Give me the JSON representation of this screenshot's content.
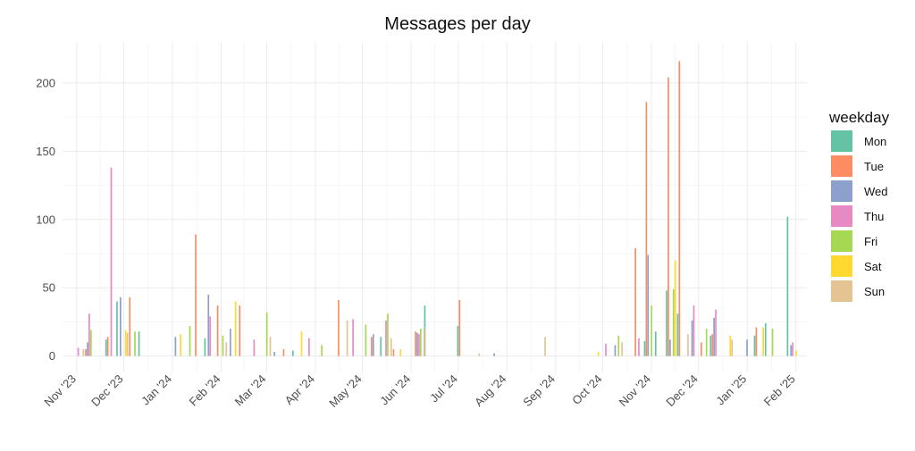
{
  "chart_data": {
    "type": "bar",
    "title": "Messages per day",
    "xlabel": "",
    "ylabel": "",
    "xlim": [
      "2023-10-23",
      "2025-02-08"
    ],
    "ylim": [
      -12,
      230
    ],
    "y_ticks": [
      0,
      50,
      100,
      150,
      200
    ],
    "x_ticks": [
      {
        "date": "2023-11-01",
        "label": "Nov '23"
      },
      {
        "date": "2023-12-01",
        "label": "Dec '23"
      },
      {
        "date": "2024-01-01",
        "label": "Jan '24"
      },
      {
        "date": "2024-02-01",
        "label": "Feb '24"
      },
      {
        "date": "2024-03-01",
        "label": "Mar '24"
      },
      {
        "date": "2024-04-01",
        "label": "Apr '24"
      },
      {
        "date": "2024-05-01",
        "label": "May '24"
      },
      {
        "date": "2024-06-01",
        "label": "Jun '24"
      },
      {
        "date": "2024-07-01",
        "label": "Jul '24"
      },
      {
        "date": "2024-08-01",
        "label": "Aug '24"
      },
      {
        "date": "2024-09-01",
        "label": "Sep '24"
      },
      {
        "date": "2024-10-01",
        "label": "Oct '24"
      },
      {
        "date": "2024-11-01",
        "label": "Nov '24"
      },
      {
        "date": "2024-12-01",
        "label": "Dec '24"
      },
      {
        "date": "2025-01-01",
        "label": "Jan '25"
      },
      {
        "date": "2025-02-01",
        "label": "Feb '25"
      }
    ],
    "grid": true,
    "legend": {
      "title": "weekday",
      "position": "right"
    },
    "series": [
      {
        "name": "Mon",
        "color": "#66C2A5",
        "points": [
          [
            "2023-11-20",
            12
          ],
          [
            "2023-11-27",
            40
          ],
          [
            "2023-12-11",
            18
          ],
          [
            "2024-01-22",
            13
          ],
          [
            "2024-03-18",
            4
          ],
          [
            "2024-05-13",
            14
          ],
          [
            "2024-06-10",
            37
          ],
          [
            "2024-07-01",
            22
          ],
          [
            "2024-10-28",
            11
          ],
          [
            "2024-11-04",
            18
          ],
          [
            "2024-11-11",
            48
          ],
          [
            "2024-11-18",
            31
          ],
          [
            "2024-12-09",
            15
          ],
          [
            "2025-01-06",
            15
          ],
          [
            "2025-01-13",
            24
          ],
          [
            "2025-01-27",
            102
          ]
        ]
      },
      {
        "name": "Tue",
        "color": "#FC8D62",
        "points": [
          [
            "2023-11-07",
            5
          ],
          [
            "2023-11-21",
            14
          ],
          [
            "2023-12-05",
            43
          ],
          [
            "2024-01-16",
            89
          ],
          [
            "2024-01-30",
            37
          ],
          [
            "2024-02-13",
            37
          ],
          [
            "2024-03-12",
            5
          ],
          [
            "2024-04-16",
            41
          ],
          [
            "2024-05-07",
            14
          ],
          [
            "2024-05-21",
            5
          ],
          [
            "2024-06-04",
            18
          ],
          [
            "2024-07-02",
            41
          ],
          [
            "2024-10-22",
            79
          ],
          [
            "2024-10-29",
            186
          ],
          [
            "2024-11-12",
            204
          ],
          [
            "2024-11-19",
            216
          ],
          [
            "2024-12-03",
            10
          ],
          [
            "2024-12-10",
            16
          ],
          [
            "2025-01-07",
            21
          ]
        ]
      },
      {
        "name": "Wed",
        "color": "#8DA0CB",
        "points": [
          [
            "2023-11-08",
            10
          ],
          [
            "2023-11-29",
            43
          ],
          [
            "2024-01-03",
            14
          ],
          [
            "2024-01-24",
            45
          ],
          [
            "2024-02-07",
            20
          ],
          [
            "2024-03-06",
            3
          ],
          [
            "2024-05-08",
            16
          ],
          [
            "2024-06-05",
            17
          ],
          [
            "2024-07-24",
            2
          ],
          [
            "2024-10-09",
            8
          ],
          [
            "2024-10-30",
            74
          ],
          [
            "2024-11-13",
            12
          ],
          [
            "2024-11-27",
            26
          ],
          [
            "2024-12-11",
            28
          ],
          [
            "2025-01-01",
            12
          ],
          [
            "2025-01-29",
            8
          ]
        ]
      },
      {
        "name": "Thu",
        "color": "#E78AC3",
        "points": [
          [
            "2023-11-02",
            6
          ],
          [
            "2023-11-09",
            31
          ],
          [
            "2023-11-23",
            138
          ],
          [
            "2024-01-25",
            29
          ],
          [
            "2024-02-22",
            12
          ],
          [
            "2024-03-28",
            13
          ],
          [
            "2024-04-25",
            27
          ],
          [
            "2024-05-16",
            26
          ],
          [
            "2024-06-06",
            16
          ],
          [
            "2024-10-03",
            9
          ],
          [
            "2024-10-24",
            13
          ],
          [
            "2024-11-28",
            37
          ],
          [
            "2024-12-12",
            34
          ],
          [
            "2025-01-30",
            10
          ]
        ]
      },
      {
        "name": "Fri",
        "color": "#A6D854",
        "points": [
          [
            "2023-11-10",
            19
          ],
          [
            "2023-12-08",
            18
          ],
          [
            "2024-01-12",
            22
          ],
          [
            "2024-02-02",
            15
          ],
          [
            "2024-03-01",
            32
          ],
          [
            "2024-04-05",
            8
          ],
          [
            "2024-05-03",
            23
          ],
          [
            "2024-05-17",
            31
          ],
          [
            "2024-06-07",
            20
          ],
          [
            "2024-10-11",
            15
          ],
          [
            "2024-11-01",
            37
          ],
          [
            "2024-11-15",
            49
          ],
          [
            "2024-12-06",
            20
          ],
          [
            "2025-01-17",
            20
          ]
        ]
      },
      {
        "name": "Sat",
        "color": "#FFD92F",
        "points": [
          [
            "2023-12-02",
            19
          ],
          [
            "2024-01-06",
            16
          ],
          [
            "2024-02-10",
            40
          ],
          [
            "2024-03-23",
            18
          ],
          [
            "2024-05-25",
            5
          ],
          [
            "2024-09-28",
            3
          ],
          [
            "2024-11-16",
            70
          ],
          [
            "2024-12-21",
            15
          ],
          [
            "2025-01-11",
            21
          ],
          [
            "2025-02-01",
            4
          ]
        ]
      },
      {
        "name": "Sun",
        "color": "#E5C494",
        "points": [
          [
            "2023-11-05",
            5
          ],
          [
            "2023-12-03",
            17
          ],
          [
            "2024-02-04",
            10
          ],
          [
            "2024-03-03",
            14
          ],
          [
            "2024-04-21",
            26
          ],
          [
            "2024-05-19",
            13
          ],
          [
            "2024-06-09",
            21
          ],
          [
            "2024-07-14",
            2
          ],
          [
            "2024-08-25",
            14
          ],
          [
            "2024-10-13",
            10
          ],
          [
            "2024-11-24",
            16
          ],
          [
            "2024-12-22",
            12
          ]
        ]
      }
    ]
  }
}
